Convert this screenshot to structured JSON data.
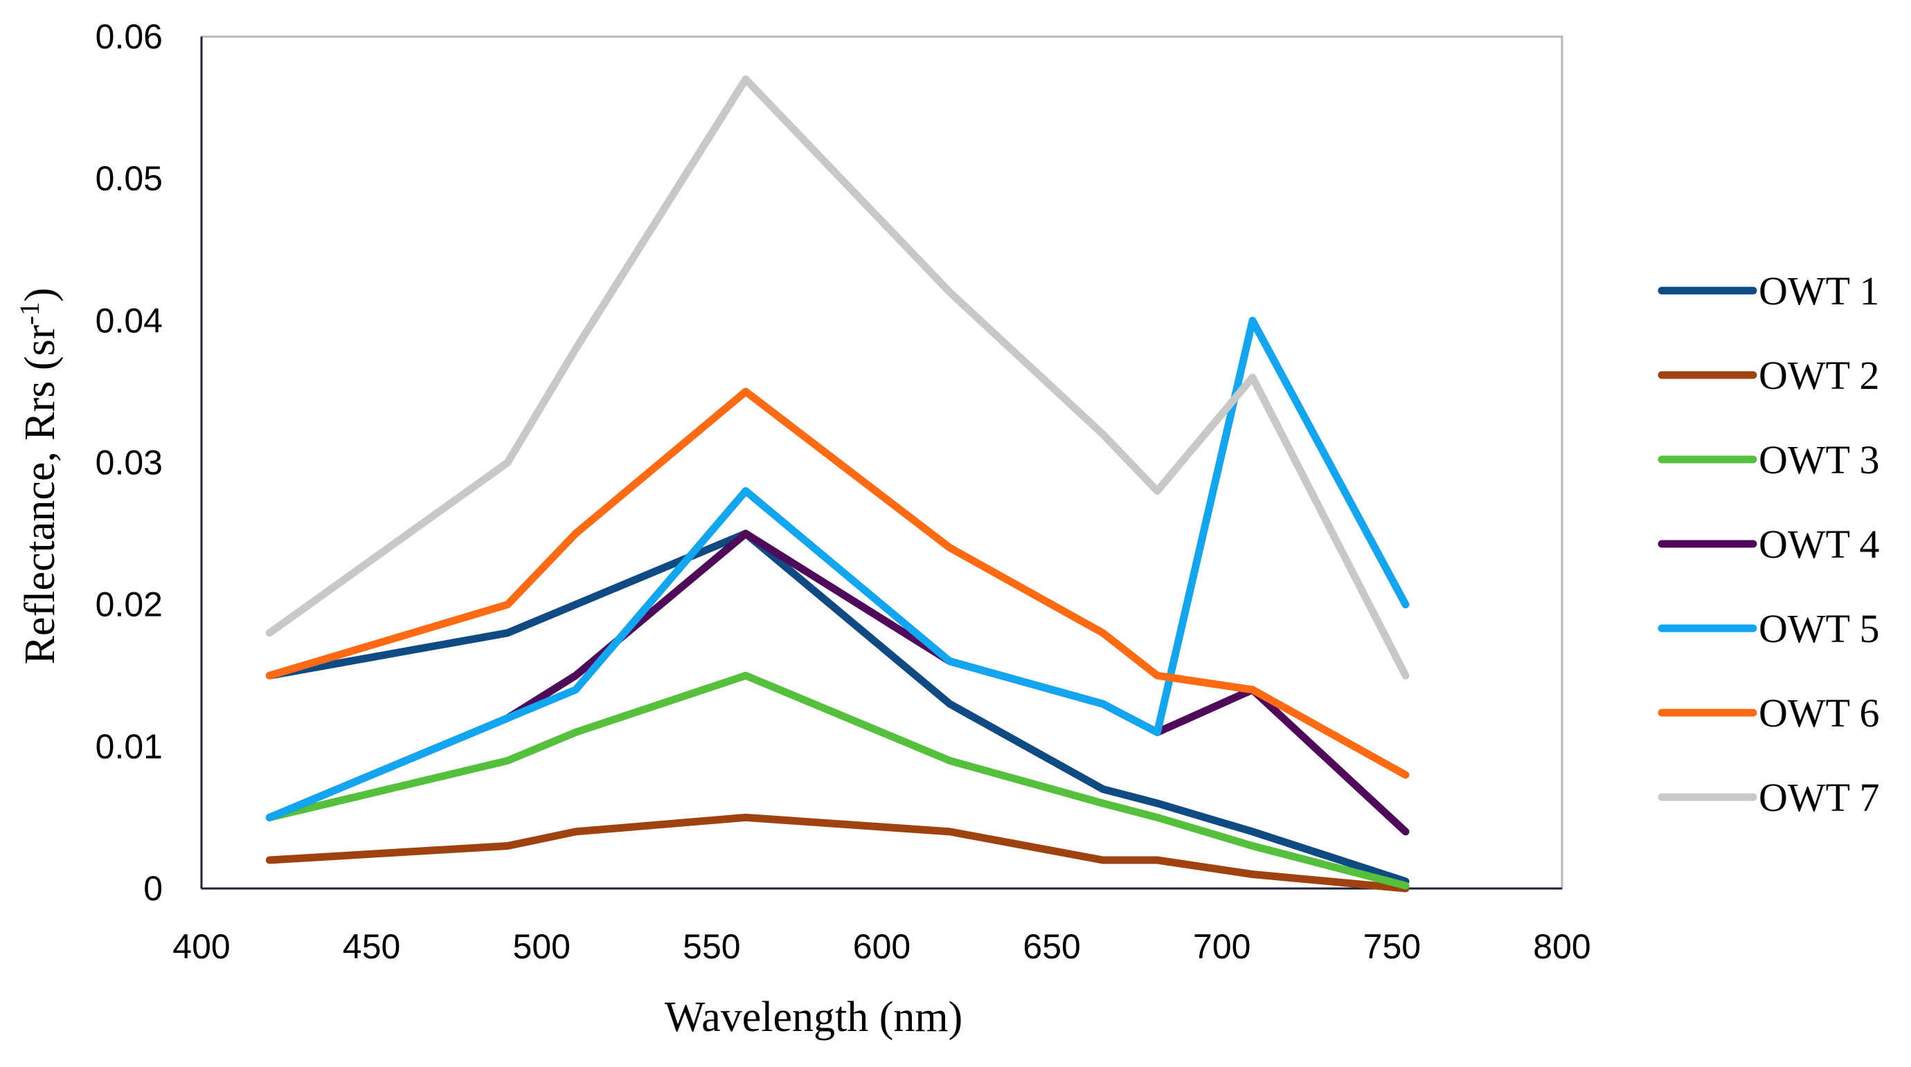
{
  "chart_data": {
    "type": "line",
    "title": "",
    "xlabel": "Wavelength (nm)",
    "ylabel": "Reflectance, Rrs (sr",
    "ylabel_superscript": "-1",
    "ylabel_suffix": ")",
    "xlim": [
      400,
      800
    ],
    "ylim": [
      0,
      0.06
    ],
    "xticks": [
      400,
      450,
      500,
      550,
      600,
      650,
      700,
      750,
      800
    ],
    "xtick_labels": [
      "400",
      "450",
      "500",
      "550",
      "600",
      "650",
      "700",
      "750",
      "800"
    ],
    "yticks": [
      0,
      0.01,
      0.02,
      0.03,
      0.04,
      0.05,
      0.06
    ],
    "ytick_labels": [
      "0",
      "0.01",
      "0.02",
      "0.03",
      "0.04",
      "0.05",
      "0.06"
    ],
    "grid": false,
    "legend_position": "right",
    "x": [
      420,
      490,
      510,
      560,
      620,
      665,
      681,
      709,
      754
    ],
    "series": [
      {
        "name": "OWT 1",
        "color": "#0f4b82",
        "values": [
          0.015,
          0.018,
          0.02,
          0.025,
          0.013,
          0.007,
          0.006,
          0.004,
          0.0005
        ]
      },
      {
        "name": "OWT 2",
        "color": "#a0420f",
        "values": [
          0.002,
          0.003,
          0.004,
          0.005,
          0.004,
          0.002,
          0.002,
          0.001,
          0.0
        ]
      },
      {
        "name": "OWT 3",
        "color": "#54c03c",
        "values": [
          0.005,
          0.009,
          0.011,
          0.015,
          0.009,
          0.006,
          0.005,
          0.003,
          0.0002
        ]
      },
      {
        "name": "OWT 4",
        "color": "#500a5a",
        "values": [
          0.005,
          0.012,
          0.015,
          0.025,
          0.016,
          0.013,
          0.011,
          0.014,
          0.004
        ]
      },
      {
        "name": "OWT 5",
        "color": "#12a6f0",
        "values": [
          0.005,
          0.012,
          0.014,
          0.028,
          0.016,
          0.013,
          0.011,
          0.04,
          0.02
        ]
      },
      {
        "name": "OWT 6",
        "color": "#ff6a12",
        "values": [
          0.015,
          0.02,
          0.025,
          0.035,
          0.024,
          0.018,
          0.015,
          0.014,
          0.008
        ]
      },
      {
        "name": "OWT 7",
        "color": "#c8c8c8",
        "values": [
          0.018,
          0.03,
          0.038,
          0.057,
          0.042,
          0.032,
          0.028,
          0.036,
          0.015
        ]
      }
    ]
  }
}
